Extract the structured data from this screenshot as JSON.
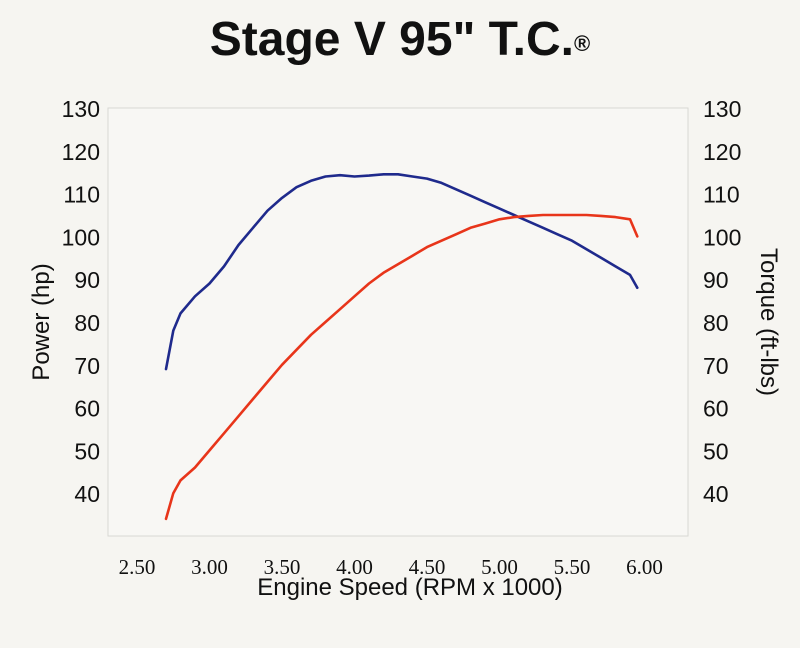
{
  "title": "Stage V 95\" T.C.",
  "title_mark": "®",
  "chart_data": {
    "type": "line",
    "xlabel": "Engine Speed (RPM x 1000)",
    "ylabel_left": "Power (hp)",
    "ylabel_right": "Torque (ft-lbs)",
    "x_ticks": [
      "2.50",
      "3.00",
      "3.50",
      "4.00",
      "4.50",
      "5.00",
      "5.50",
      "6.00"
    ],
    "x_tick_values": [
      2.5,
      3.0,
      3.5,
      4.0,
      4.5,
      5.0,
      5.5,
      6.0
    ],
    "y_ticks": [
      "40",
      "50",
      "60",
      "70",
      "80",
      "90",
      "100",
      "110",
      "120",
      "130"
    ],
    "y_tick_values": [
      40,
      50,
      60,
      70,
      80,
      90,
      100,
      110,
      120,
      130
    ],
    "xlim": [
      2.3,
      6.3
    ],
    "ylim": [
      30,
      130
    ],
    "grid": false,
    "series": [
      {
        "axis": "right",
        "color": "#1f2a8c",
        "x": [
          2.7,
          2.75,
          2.8,
          2.9,
          3.0,
          3.1,
          3.2,
          3.3,
          3.4,
          3.5,
          3.6,
          3.7,
          3.8,
          3.9,
          4.0,
          4.1,
          4.2,
          4.3,
          4.4,
          4.5,
          4.6,
          4.7,
          4.8,
          4.9,
          5.0,
          5.1,
          5.2,
          5.3,
          5.4,
          5.5,
          5.6,
          5.7,
          5.8,
          5.9,
          5.95
        ],
        "values": [
          69,
          78,
          82,
          86,
          89,
          93,
          98,
          102,
          106,
          109,
          111.5,
          113,
          114,
          114.3,
          114,
          114.2,
          114.5,
          114.5,
          114,
          113.5,
          112.5,
          111,
          109.5,
          108,
          106.5,
          105,
          103.5,
          102,
          100.5,
          99,
          97,
          95,
          93,
          91,
          88
        ]
      },
      {
        "axis": "left",
        "color": "#e8351a",
        "x": [
          2.7,
          2.75,
          2.8,
          2.9,
          3.0,
          3.1,
          3.2,
          3.3,
          3.4,
          3.5,
          3.6,
          3.7,
          3.8,
          3.9,
          4.0,
          4.1,
          4.2,
          4.3,
          4.4,
          4.5,
          4.6,
          4.7,
          4.8,
          4.9,
          5.0,
          5.1,
          5.2,
          5.3,
          5.4,
          5.5,
          5.6,
          5.7,
          5.8,
          5.9,
          5.95
        ],
        "values": [
          34,
          40,
          43,
          46,
          50,
          54,
          58,
          62,
          66,
          70,
          73.5,
          77,
          80,
          83,
          86,
          89,
          91.5,
          93.5,
          95.5,
          97.5,
          99,
          100.5,
          102,
          103,
          104,
          104.5,
          104.8,
          105,
          105,
          105,
          105,
          104.8,
          104.5,
          104,
          100
        ]
      }
    ]
  }
}
